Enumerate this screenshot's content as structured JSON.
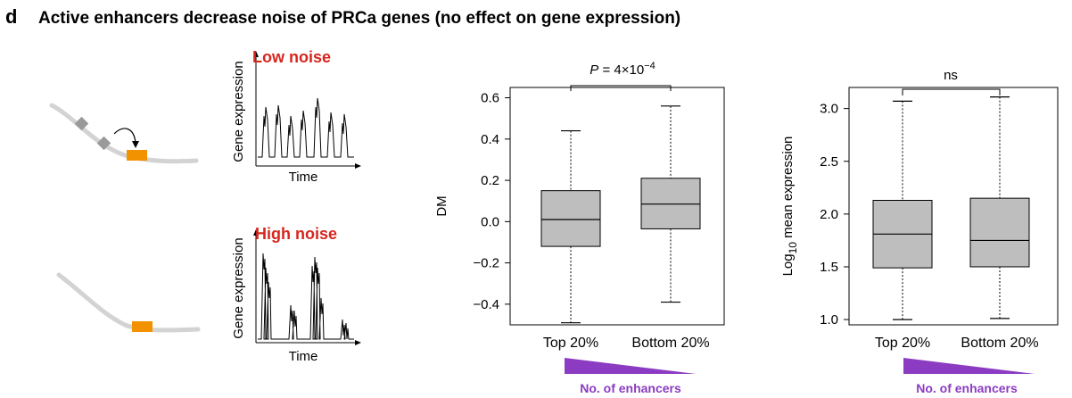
{
  "panel_letter": "d",
  "title": "Active enhancers decrease noise of PRCa genes (no effect on gene expression)",
  "schematics": [
    {
      "label": "Low noise",
      "ylabel": "Gene expression",
      "xlabel": "Time",
      "enhancers": 2
    },
    {
      "label": "High noise",
      "ylabel": "Gene expression",
      "xlabel": "Time",
      "enhancers": 0
    }
  ],
  "colors": {
    "label_red": "#d7261e",
    "enhancer": "#9a9a9a",
    "gene": "#f39200",
    "dna": "#d3d3d3",
    "box": "#bebebe",
    "wedge": "#8b3cc2"
  },
  "chart_data": [
    {
      "type": "box",
      "categories": [
        "Top 20%",
        "Bottom 20%"
      ],
      "ylabel": "DM",
      "ylim": [
        -0.5,
        0.65
      ],
      "yticks": [
        "0.6",
        "0.4",
        "0.2",
        "0.0",
        "−0.2",
        "−0.4"
      ],
      "boxes": [
        {
          "whisker_low": -0.49,
          "q1": -0.12,
          "median": 0.01,
          "q3": 0.15,
          "whisker_high": 0.44
        },
        {
          "whisker_low": -0.39,
          "q1": -0.035,
          "median": 0.085,
          "q3": 0.21,
          "whisker_high": 0.56
        }
      ],
      "significance": {
        "prefix": "P = 4×10",
        "exponent": "−4"
      },
      "gradient_label": "No. of enhancers"
    },
    {
      "type": "box",
      "categories": [
        "Top 20%",
        "Bottom 20%"
      ],
      "ylabel_main": "Log",
      "ylabel_sub": "10",
      "ylabel_rest": " mean expression",
      "ylim": [
        0.95,
        3.2
      ],
      "yticks": [
        "3.0",
        "2.5",
        "2.0",
        "1.5",
        "1.0"
      ],
      "boxes": [
        {
          "whisker_low": 1.0,
          "q1": 1.49,
          "median": 1.81,
          "q3": 2.13,
          "whisker_high": 3.07
        },
        {
          "whisker_low": 1.01,
          "q1": 1.5,
          "median": 1.75,
          "q3": 2.15,
          "whisker_high": 3.11
        }
      ],
      "significance": {
        "prefix": "ns",
        "exponent": ""
      },
      "gradient_label": "No. of enhancers"
    }
  ]
}
